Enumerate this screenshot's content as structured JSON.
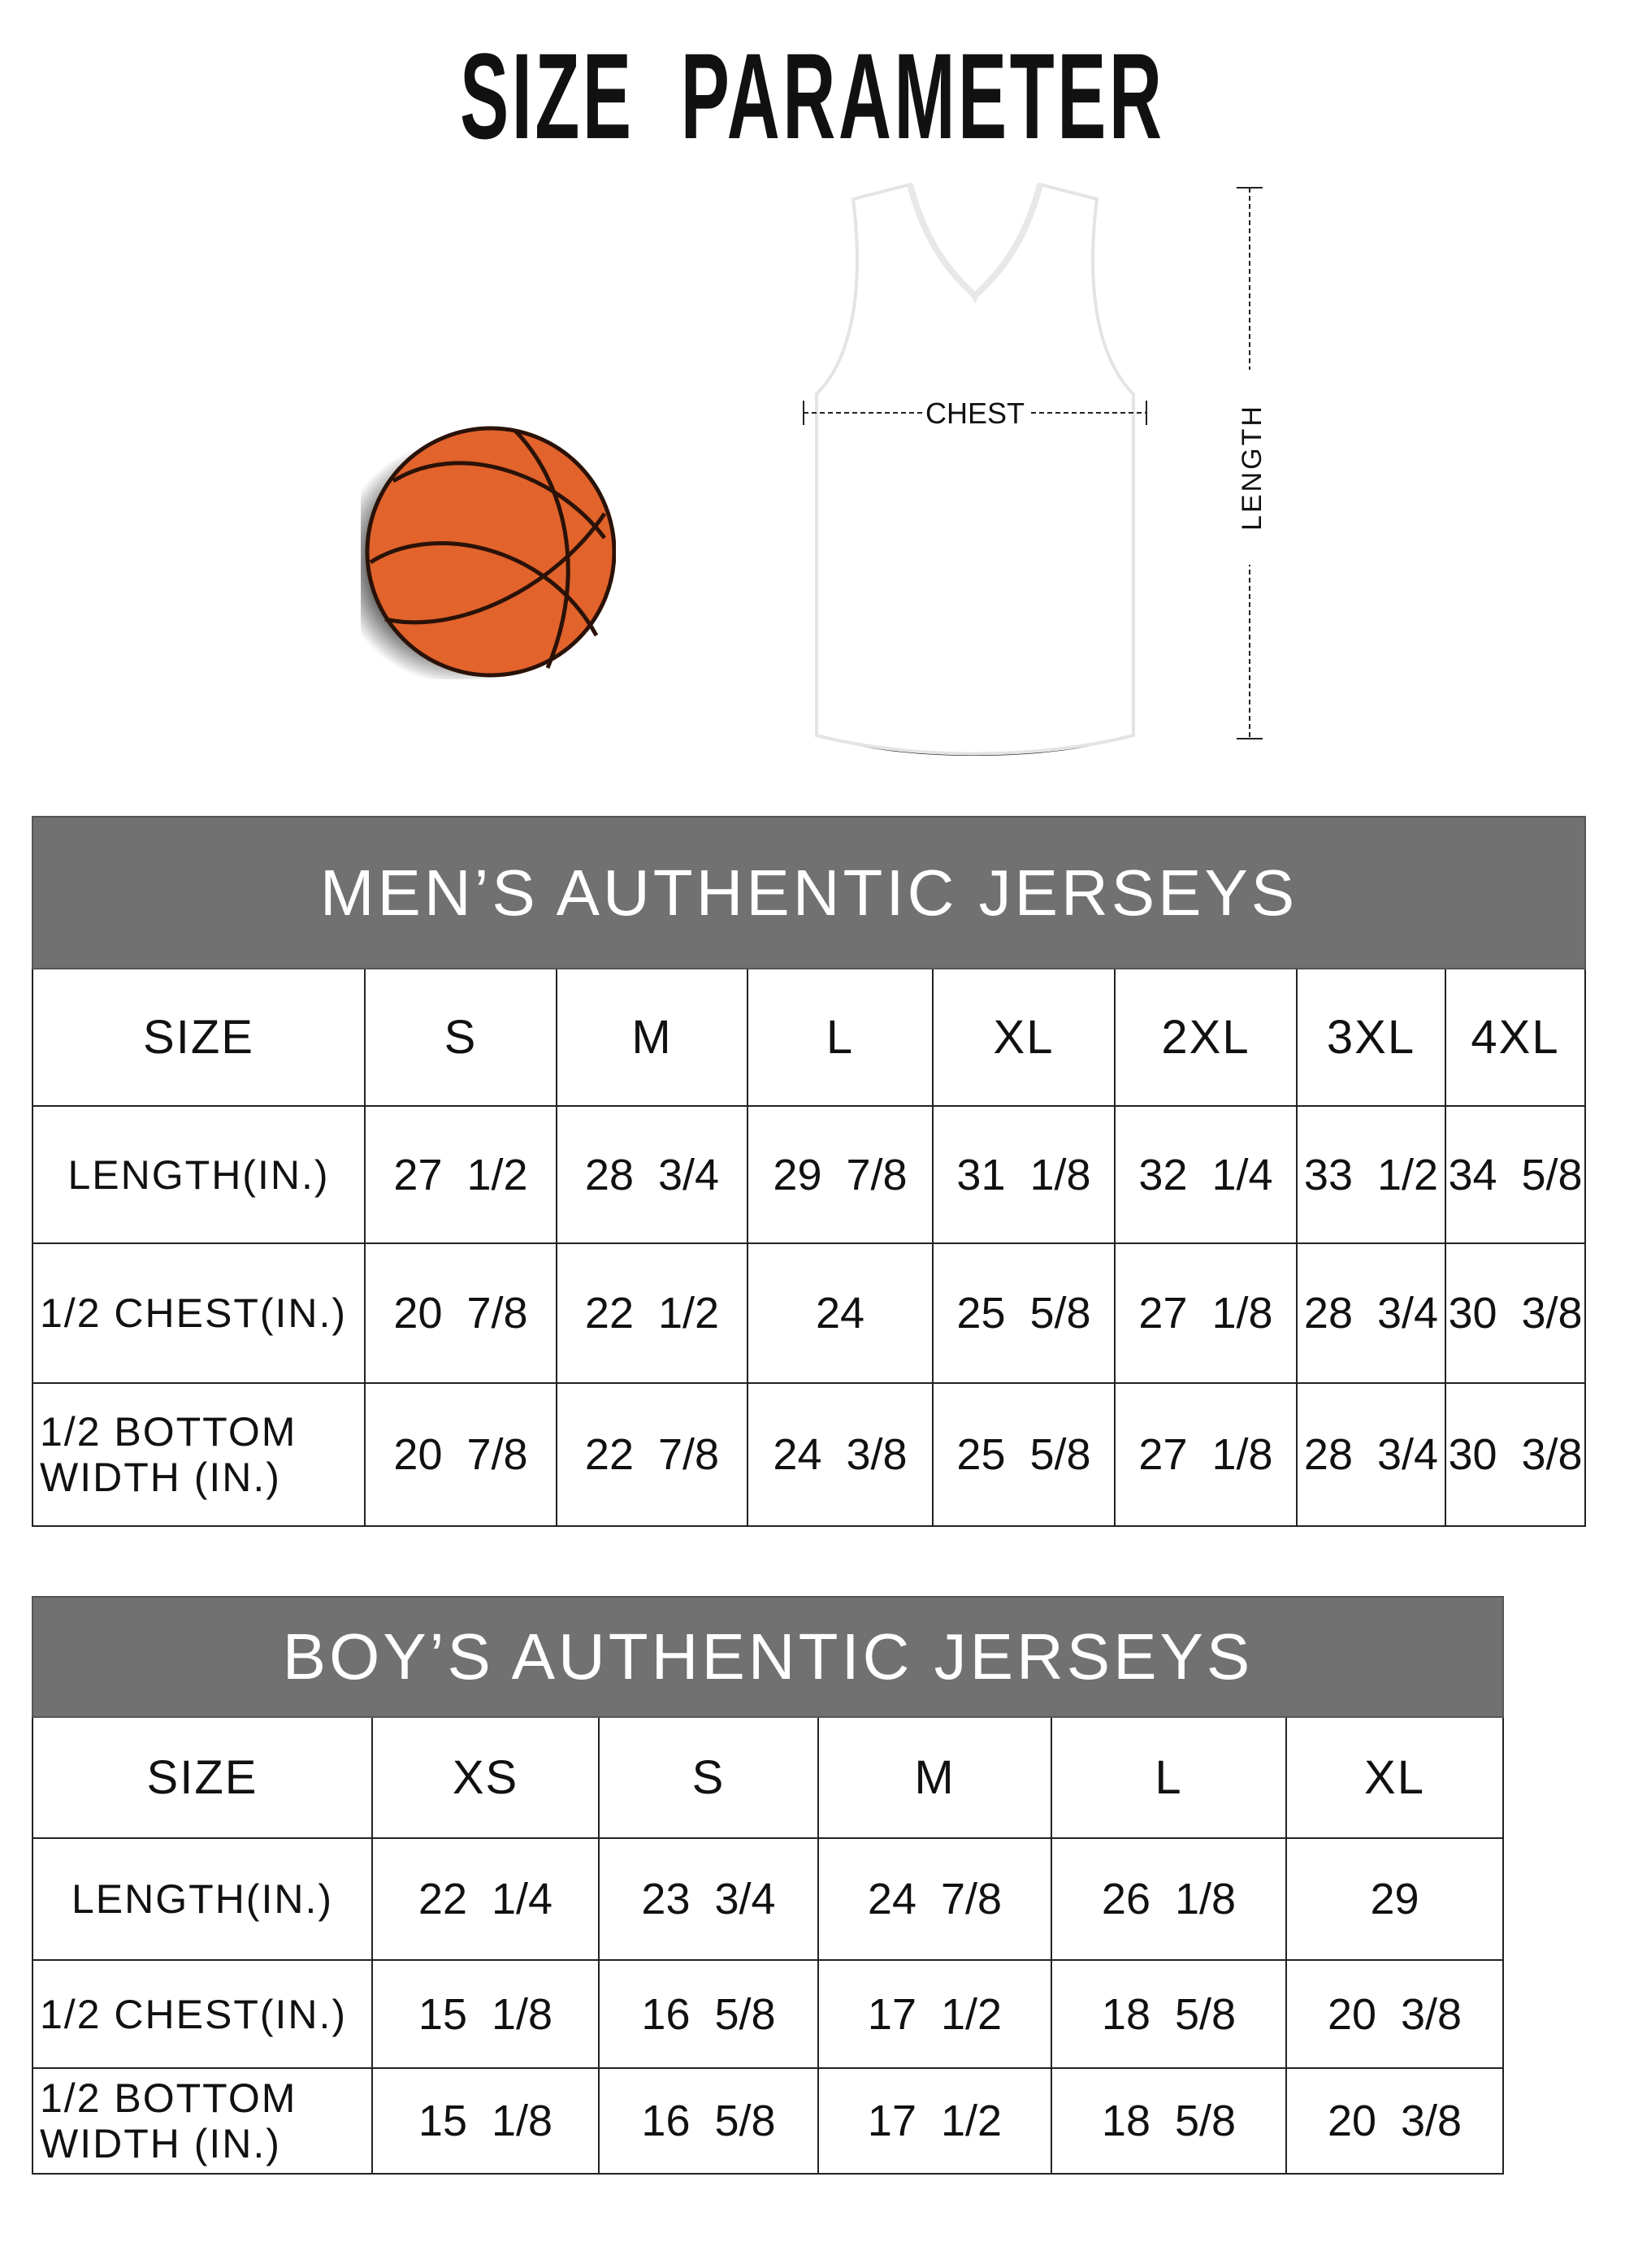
{
  "title": "SIZE  PARAMETER",
  "diagram": {
    "chest_label": "CHEST",
    "length_label": "LENGTH"
  },
  "colors": {
    "band": "#717171",
    "ball": "#E2632B"
  },
  "men": {
    "heading": "MEN’S AUTHENTIC JERSEYS",
    "size_label": "SIZE",
    "sizes": [
      "S",
      "M",
      "L",
      "XL",
      "2XL",
      "3XL",
      "4XL"
    ],
    "rows": [
      {
        "label": "LENGTH(IN.)",
        "values": [
          "27  1/2",
          "28  3/4",
          "29  7/8",
          "31  1/8",
          "32  1/4",
          "33  1/2",
          "34  5/8"
        ]
      },
      {
        "label": "1/2 CHEST(IN.)",
        "values": [
          "20  7/8",
          "22  1/2",
          "24",
          "25  5/8",
          "27  1/8",
          "28  3/4",
          "30  3/8"
        ]
      },
      {
        "label": "1/2 BOTTOM WIDTH  (IN.)",
        "values": [
          "20  7/8",
          "22  7/8",
          "24  3/8",
          "25  5/8",
          "27  1/8",
          "28  3/4",
          "30  3/8"
        ]
      }
    ]
  },
  "boys": {
    "heading": "BOY’S AUTHENTIC JERSEYS",
    "size_label": "SIZE",
    "sizes": [
      "XS",
      "S",
      "M",
      "L",
      "XL"
    ],
    "rows": [
      {
        "label": "LENGTH(IN.)",
        "values": [
          "22  1/4",
          "23  3/4",
          "24  7/8",
          "26  1/8",
          "29"
        ]
      },
      {
        "label": "1/2 CHEST(IN.)",
        "values": [
          "15  1/8",
          "16  5/8",
          "17  1/2",
          "18  5/8",
          "20  3/8"
        ]
      },
      {
        "label": "1/2 BOTTOM WIDTH  (IN.)",
        "values": [
          "15  1/8",
          "16  5/8",
          "17  1/2",
          "18  5/8",
          "20  3/8"
        ]
      }
    ]
  }
}
